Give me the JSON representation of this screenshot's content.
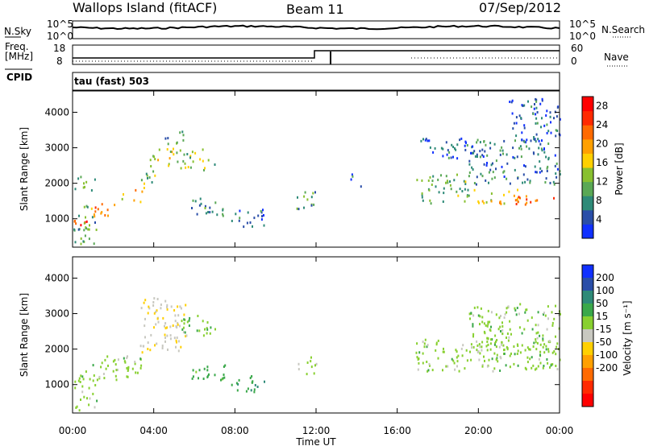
{
  "header": {
    "station": "Wallops Island (fitACF)",
    "beam": "Beam 11",
    "date": "07/Sep/2012"
  },
  "top_panels": {
    "nsky_label": "N.Sky",
    "nsky_ticks": [
      "10^5",
      "10^0"
    ],
    "nsearch_label": "N.Search",
    "nsearch_ticks": [
      "10^5",
      "10^0"
    ],
    "freq_label": "Freq.",
    "freq_unit": "[MHz]",
    "freq_ticks": [
      "18",
      "8"
    ],
    "nave_label": "Nave",
    "nave_ticks": [
      "60",
      "0"
    ],
    "cpid_label": "CPID",
    "cpid_text": "tau (fast) 503"
  },
  "chart_data": [
    {
      "type": "heatmap",
      "name": "power-panel",
      "ylabel": "Slant Range [km]",
      "yticks": [
        1000,
        2000,
        3000,
        4000
      ],
      "ylim": [
        200,
        4600
      ],
      "xlim": [
        0,
        24
      ],
      "colorbar": {
        "label": "Power [dB]",
        "ticks": [
          4,
          8,
          12,
          16,
          20,
          24,
          28
        ],
        "range": [
          0,
          30
        ],
        "colors": [
          "#1030ff",
          "#2a4ea8",
          "#2e8a78",
          "#5aa855",
          "#88c030",
          "#ffd000",
          "#ffa000",
          "#ff6a00",
          "#ff2a00",
          "#ff0000"
        ]
      },
      "echo_regions": [
        {
          "t": [
            0.0,
            0.9
          ],
          "r": [
            850,
            1150
          ],
          "p": 26
        },
        {
          "t": [
            0.0,
            1.2
          ],
          "r": [
            300,
            1400
          ],
          "p": 10
        },
        {
          "t": [
            0.9,
            2.4
          ],
          "r": [
            1100,
            1450
          ],
          "p": 20
        },
        {
          "t": [
            2.4,
            3.4
          ],
          "r": [
            1500,
            1850
          ],
          "p": 18
        },
        {
          "t": [
            0.0,
            1.2
          ],
          "r": [
            1800,
            2300
          ],
          "p": 10
        },
        {
          "t": [
            3.3,
            4.1
          ],
          "r": [
            1900,
            2400
          ],
          "p": 12
        },
        {
          "t": [
            3.8,
            5.3
          ],
          "r": [
            2500,
            3100
          ],
          "p": 15
        },
        {
          "t": [
            4.2,
            5.6
          ],
          "r": [
            3100,
            3500
          ],
          "p": 9
        },
        {
          "t": [
            5.3,
            7.0
          ],
          "r": [
            2400,
            3000
          ],
          "p": 13
        },
        {
          "t": [
            5.8,
            7.5
          ],
          "r": [
            1100,
            1600
          ],
          "p": 8
        },
        {
          "t": [
            7.8,
            9.5
          ],
          "r": [
            800,
            1300
          ],
          "p": 7
        },
        {
          "t": [
            11.0,
            12.0
          ],
          "r": [
            1300,
            1800
          ],
          "p": 9
        },
        {
          "t": [
            13.6,
            14.2
          ],
          "r": [
            1900,
            2300
          ],
          "p": 6
        },
        {
          "t": [
            16.9,
            19.5
          ],
          "r": [
            1450,
            2300
          ],
          "p": 11
        },
        {
          "t": [
            19.5,
            22.0
          ],
          "r": [
            1450,
            1850
          ],
          "p": 14
        },
        {
          "t": [
            20.6,
            24.0
          ],
          "r": [
            1400,
            1700
          ],
          "p": 22
        },
        {
          "t": [
            19.5,
            24.0
          ],
          "r": [
            2000,
            3300
          ],
          "p": 7
        },
        {
          "t": [
            21.5,
            24.0
          ],
          "r": [
            3200,
            4400
          ],
          "p": 5
        },
        {
          "t": [
            16.9,
            20.0
          ],
          "r": [
            2700,
            3300
          ],
          "p": 5
        }
      ]
    },
    {
      "type": "heatmap",
      "name": "velocity-panel",
      "ylabel": "Slant Range [km]",
      "yticks": [
        1000,
        2000,
        3000,
        4000
      ],
      "ylim": [
        200,
        4600
      ],
      "xlim": [
        0,
        24
      ],
      "xlabel": "Time UT",
      "xticks": [
        "00:00",
        "04:00",
        "08:00",
        "12:00",
        "16:00",
        "20:00",
        "00:00"
      ],
      "colorbar": {
        "label": "Velocity [m s⁻¹]",
        "ticks": [
          200,
          100,
          50,
          15,
          -15,
          -50,
          -100,
          -200
        ],
        "colors": [
          "#1030ff",
          "#2a4ea8",
          "#2e8a78",
          "#3aa84a",
          "#88d030",
          "#c8c8c0",
          "#ffd000",
          "#ffa000",
          "#ff6a00",
          "#ff2a00",
          "#ff0000"
        ]
      },
      "echo_regions": [
        {
          "t": [
            0.0,
            1.2
          ],
          "r": [
            300,
            1400
          ],
          "v": 0
        },
        {
          "t": [
            0.9,
            3.4
          ],
          "r": [
            1100,
            1850
          ],
          "v": 0
        },
        {
          "t": [
            3.3,
            5.6
          ],
          "r": [
            1900,
            3500
          ],
          "v": -40
        },
        {
          "t": [
            5.3,
            7.0
          ],
          "r": [
            2400,
            3000
          ],
          "v": 5
        },
        {
          "t": [
            5.8,
            7.5
          ],
          "r": [
            1100,
            1600
          ],
          "v": 30
        },
        {
          "t": [
            7.8,
            9.5
          ],
          "r": [
            800,
            1300
          ],
          "v": 40
        },
        {
          "t": [
            11.0,
            12.0
          ],
          "r": [
            1300,
            1800
          ],
          "v": 0
        },
        {
          "t": [
            16.9,
            24.0
          ],
          "r": [
            1400,
            2300
          ],
          "v": 0
        },
        {
          "t": [
            19.5,
            24.0
          ],
          "r": [
            2000,
            3300
          ],
          "v": 0
        }
      ]
    }
  ]
}
